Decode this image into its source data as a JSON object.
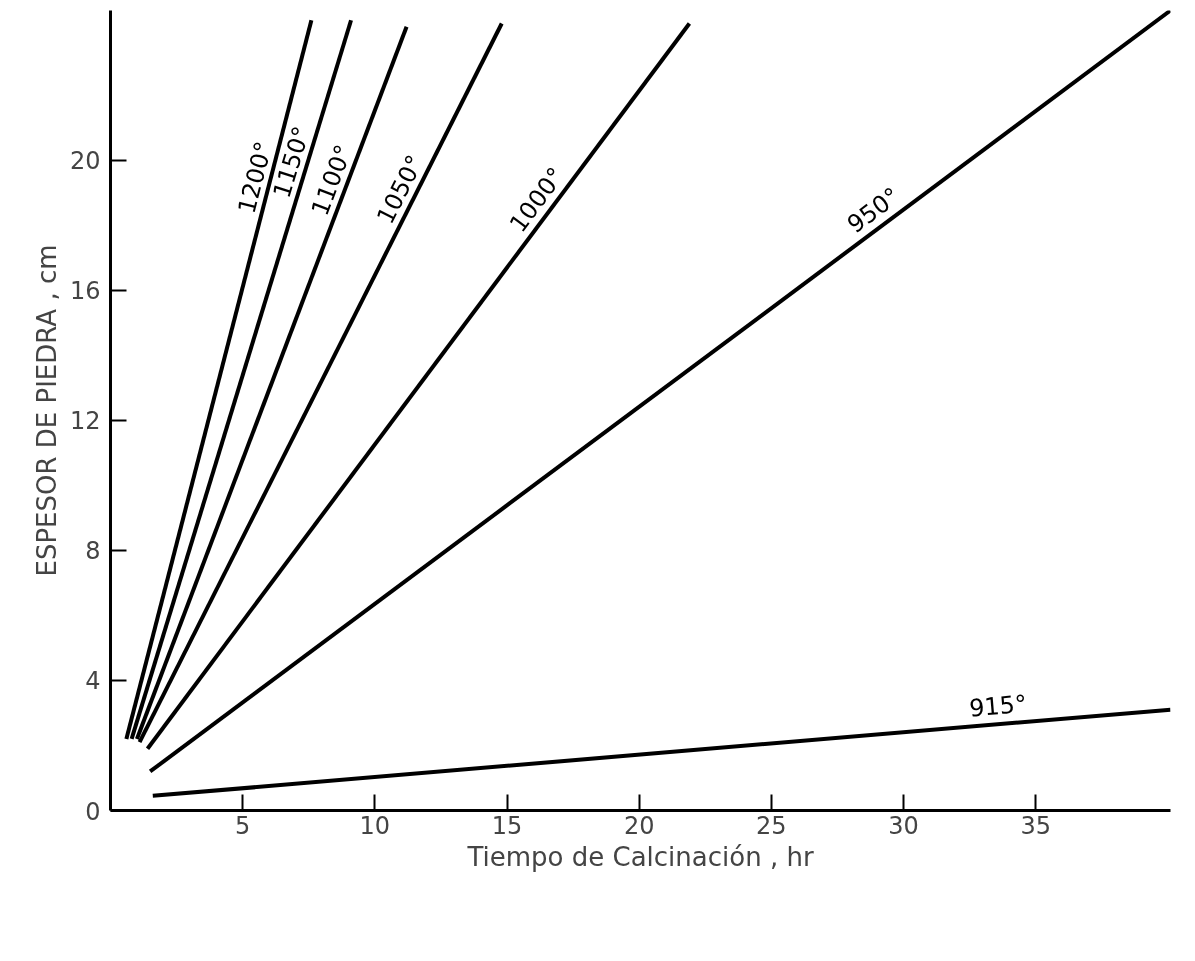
{
  "chart_data": {
    "type": "line",
    "xlabel": "Tiempo de Calcinación , hr",
    "ylabel": "ESPESOR DE PIEDRA , cm",
    "xlim": [
      0,
      40.1
    ],
    "ylim": [
      0,
      24.6
    ],
    "xticks": [
      5,
      10,
      15,
      20,
      25,
      30,
      35
    ],
    "yticks": [
      0,
      4,
      8,
      12,
      16,
      20
    ],
    "grid": false,
    "legend": false,
    "marker": "none",
    "line_style": "solid",
    "series": [
      {
        "name": "1200°",
        "color": "#000000",
        "x": [
          0.6,
          7.6
        ],
        "values": [
          2.2,
          24.3
        ]
      },
      {
        "name": "1150°",
        "color": "#000000",
        "x": [
          0.8,
          9.1
        ],
        "values": [
          2.2,
          24.3
        ]
      },
      {
        "name": "1100°",
        "color": "#000000",
        "x": [
          1.0,
          11.2
        ],
        "values": [
          2.2,
          24.1
        ]
      },
      {
        "name": "1050°",
        "color": "#000000",
        "x": [
          1.1,
          14.8
        ],
        "values": [
          2.1,
          24.2
        ]
      },
      {
        "name": "1000°",
        "color": "#000000",
        "x": [
          1.4,
          21.9
        ],
        "values": [
          1.9,
          24.2
        ]
      },
      {
        "name": "950°",
        "color": "#000000",
        "x": [
          1.5,
          40.1
        ],
        "values": [
          1.2,
          24.6
        ]
      },
      {
        "name": "915°",
        "color": "#000000",
        "x": [
          1.6,
          40.1
        ],
        "values": [
          0.45,
          3.1
        ]
      }
    ]
  }
}
